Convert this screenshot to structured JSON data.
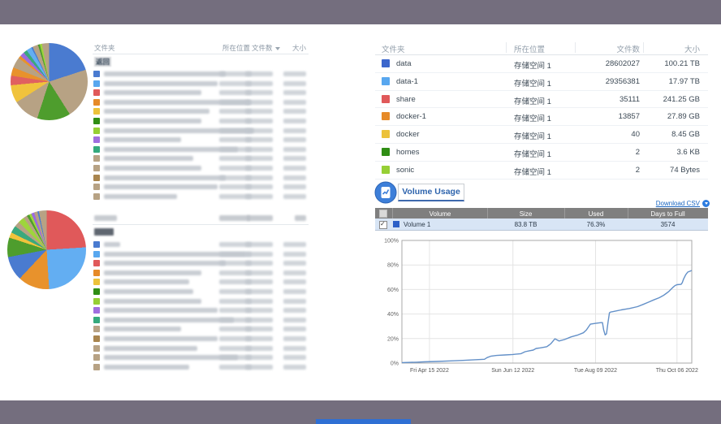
{
  "page": {
    "bg": "#ffffff",
    "frame_color": "#746e7e",
    "taskbar_color": "#2e6fd4"
  },
  "left": {
    "headers": {
      "folder": "文件夹",
      "location": "所在位置",
      "count": "文件数",
      "size": "大小"
    },
    "back_label": "返回",
    "icons": {
      "sort": "caret-down-icon"
    },
    "table1_chips": [
      "#4a7bd0",
      "#58a7ef",
      "#e0595a",
      "#e68a28",
      "#ecc23b",
      "#2f8d14",
      "#96cf35",
      "#a06ee0",
      "#35a97d",
      "#b7a284",
      "#b7a284",
      "#a9854e",
      "#b7a284",
      "#b7a284"
    ],
    "table2_chips": [
      "#4a7bd0",
      "#58a7ef",
      "#e0595a",
      "#e68a28",
      "#ecc23b",
      "#2f8d14",
      "#96cf35",
      "#a06ee0",
      "#35a97d",
      "#b7a284",
      "#a9854e",
      "#b7a284",
      "#b7a284",
      "#b7a284"
    ]
  },
  "right": {
    "headers": {
      "folder": "文件夹",
      "location": "所在位置",
      "count": "文件数",
      "size": "大小"
    },
    "folders": [
      {
        "name": "data",
        "color": "#3b66cc",
        "location": "存储空间 1",
        "count": "28602027",
        "size": "100.21 TB"
      },
      {
        "name": "data-1",
        "color": "#58a7ef",
        "location": "存储空间 1",
        "count": "29356381",
        "size": "17.97 TB"
      },
      {
        "name": "share",
        "color": "#e0595a",
        "location": "存储空间 1",
        "count": "35111",
        "size": "241.25 GB"
      },
      {
        "name": "docker-1",
        "color": "#e68a28",
        "location": "存储空间 1",
        "count": "13857",
        "size": "27.89 GB"
      },
      {
        "name": "docker",
        "color": "#ecc23b",
        "location": "存储空间 1",
        "count": "40",
        "size": "8.45 GB"
      },
      {
        "name": "homes",
        "color": "#2f8d14",
        "location": "存储空间 1",
        "count": "2",
        "size": "3.6 KB"
      },
      {
        "name": "sonic",
        "color": "#96cf35",
        "location": "存储空间 1",
        "count": "2",
        "size": "74 Bytes"
      }
    ],
    "volume_usage": {
      "title": "Volume Usage",
      "download_csv": "Download CSV",
      "icons": {
        "section": "report-chart-icon",
        "download": "download-circle-icon"
      },
      "table": {
        "headers": [
          "Volume",
          "Size",
          "Used",
          "Days to Full"
        ],
        "row": {
          "name": "Volume 1",
          "color": "#2b5fc7",
          "size": "83.8 TB",
          "used": "76.3%",
          "days_to_full": "3574",
          "checked": true
        }
      }
    }
  },
  "chart_data": [
    {
      "type": "pie",
      "position": "top-left",
      "legend_position": "table-right",
      "slices": [
        {
          "color": "#4a7bd0",
          "value": 20
        },
        {
          "color": "#b7a284",
          "value": 21
        },
        {
          "color": "#4e9d2d",
          "value": 14
        },
        {
          "color": "#b7a284",
          "value": 11
        },
        {
          "color": "#f0c33c",
          "value": 7.5
        },
        {
          "color": "#e06060",
          "value": 4
        },
        {
          "color": "#e8922c",
          "value": 3.5
        },
        {
          "color": "#b7a284",
          "value": 4.5
        },
        {
          "color": "#e8922c",
          "value": 1.2
        },
        {
          "color": "#9b6be0",
          "value": 1.8
        },
        {
          "color": "#3aa97d",
          "value": 1.6
        },
        {
          "color": "#63aef2",
          "value": 2.2
        },
        {
          "color": "#4a7bd0",
          "value": 0.6
        },
        {
          "color": "#b7a284",
          "value": 2.4
        },
        {
          "color": "#4e9d2d",
          "value": 0.8
        },
        {
          "color": "#9ed53c",
          "value": 0.9
        },
        {
          "color": "#b7a284",
          "value": 3.0
        }
      ]
    },
    {
      "type": "pie",
      "position": "bottom-left",
      "legend_position": "table-right",
      "slices": [
        {
          "color": "#e0595a",
          "value": 24
        },
        {
          "color": "#63aef2",
          "value": 25
        },
        {
          "color": "#e8922c",
          "value": 13
        },
        {
          "color": "#4a7bd0",
          "value": 10
        },
        {
          "color": "#4e9d2d",
          "value": 8
        },
        {
          "color": "#f0c33c",
          "value": 2.2
        },
        {
          "color": "#3aa97d",
          "value": 3
        },
        {
          "color": "#b7a284",
          "value": 2.2
        },
        {
          "color": "#9ed53c",
          "value": 2.6
        },
        {
          "color": "#b7a284",
          "value": 1.6
        },
        {
          "color": "#4e9d2d",
          "value": 1.0
        },
        {
          "color": "#9ed53c",
          "value": 1.0
        },
        {
          "color": "#9b6be0",
          "value": 1.2
        },
        {
          "color": "#b7a284",
          "value": 1.4
        },
        {
          "color": "#4a7bd0",
          "value": 0.6
        },
        {
          "color": "#b7a284",
          "value": 3.2
        }
      ]
    },
    {
      "type": "line",
      "ylim": [
        0,
        100
      ],
      "yticks": [
        "0%",
        "20%",
        "40%",
        "60%",
        "80%",
        "100%"
      ],
      "xticks": [
        {
          "label": "Fri Apr 15 2022",
          "f": 0.095
        },
        {
          "label": "Sun Jun 12 2022",
          "f": 0.383
        },
        {
          "label": "Tue Aug 09 2022",
          "f": 0.668
        },
        {
          "label": "Thu Oct 06 2022",
          "f": 0.949
        }
      ],
      "grid": true,
      "line_color": "#6390c8",
      "series": [
        {
          "name": "Volume 1",
          "points": [
            [
              0,
              0.4
            ],
            [
              0.05,
              0.7
            ],
            [
              0.075,
              1
            ],
            [
              0.12,
              1.3
            ],
            [
              0.168,
              1.8
            ],
            [
              0.21,
              2.2
            ],
            [
              0.243,
              2.6
            ],
            [
              0.285,
              3.1
            ],
            [
              0.294,
              4.5
            ],
            [
              0.308,
              5.7
            ],
            [
              0.327,
              6.2
            ],
            [
              0.355,
              6.6
            ],
            [
              0.383,
              7
            ],
            [
              0.411,
              7.7
            ],
            [
              0.425,
              9.3
            ],
            [
              0.439,
              10
            ],
            [
              0.453,
              10.6
            ],
            [
              0.463,
              11.9
            ],
            [
              0.477,
              12.4
            ],
            [
              0.491,
              13
            ],
            [
              0.5,
              13.4
            ],
            [
              0.509,
              14.9
            ],
            [
              0.514,
              15.8
            ],
            [
              0.528,
              19.8
            ],
            [
              0.542,
              18
            ],
            [
              0.561,
              19.2
            ],
            [
              0.584,
              21.4
            ],
            [
              0.607,
              22.9
            ],
            [
              0.626,
              24.7
            ],
            [
              0.636,
              26.9
            ],
            [
              0.65,
              31.7
            ],
            [
              0.668,
              32.4
            ],
            [
              0.687,
              33
            ],
            [
              0.692,
              33
            ],
            [
              0.696,
              27
            ],
            [
              0.701,
              23
            ],
            [
              0.706,
              24
            ],
            [
              0.711,
              33
            ],
            [
              0.716,
              41
            ],
            [
              0.72,
              41.6
            ],
            [
              0.729,
              42
            ],
            [
              0.757,
              43.4
            ],
            [
              0.785,
              44.5
            ],
            [
              0.813,
              46
            ],
            [
              0.832,
              47.8
            ],
            [
              0.85,
              49.6
            ],
            [
              0.869,
              51.5
            ],
            [
              0.888,
              53.3
            ],
            [
              0.902,
              55.1
            ],
            [
              0.911,
              56.6
            ],
            [
              0.921,
              58.4
            ],
            [
              0.927,
              59.9
            ],
            [
              0.935,
              61.7
            ],
            [
              0.942,
              63.2
            ],
            [
              0.949,
              63.9
            ],
            [
              0.963,
              64.2
            ],
            [
              0.967,
              65.4
            ],
            [
              0.972,
              68.7
            ],
            [
              0.979,
              72
            ],
            [
              0.986,
              74.2
            ],
            [
              1,
              75.5
            ]
          ]
        }
      ]
    }
  ]
}
